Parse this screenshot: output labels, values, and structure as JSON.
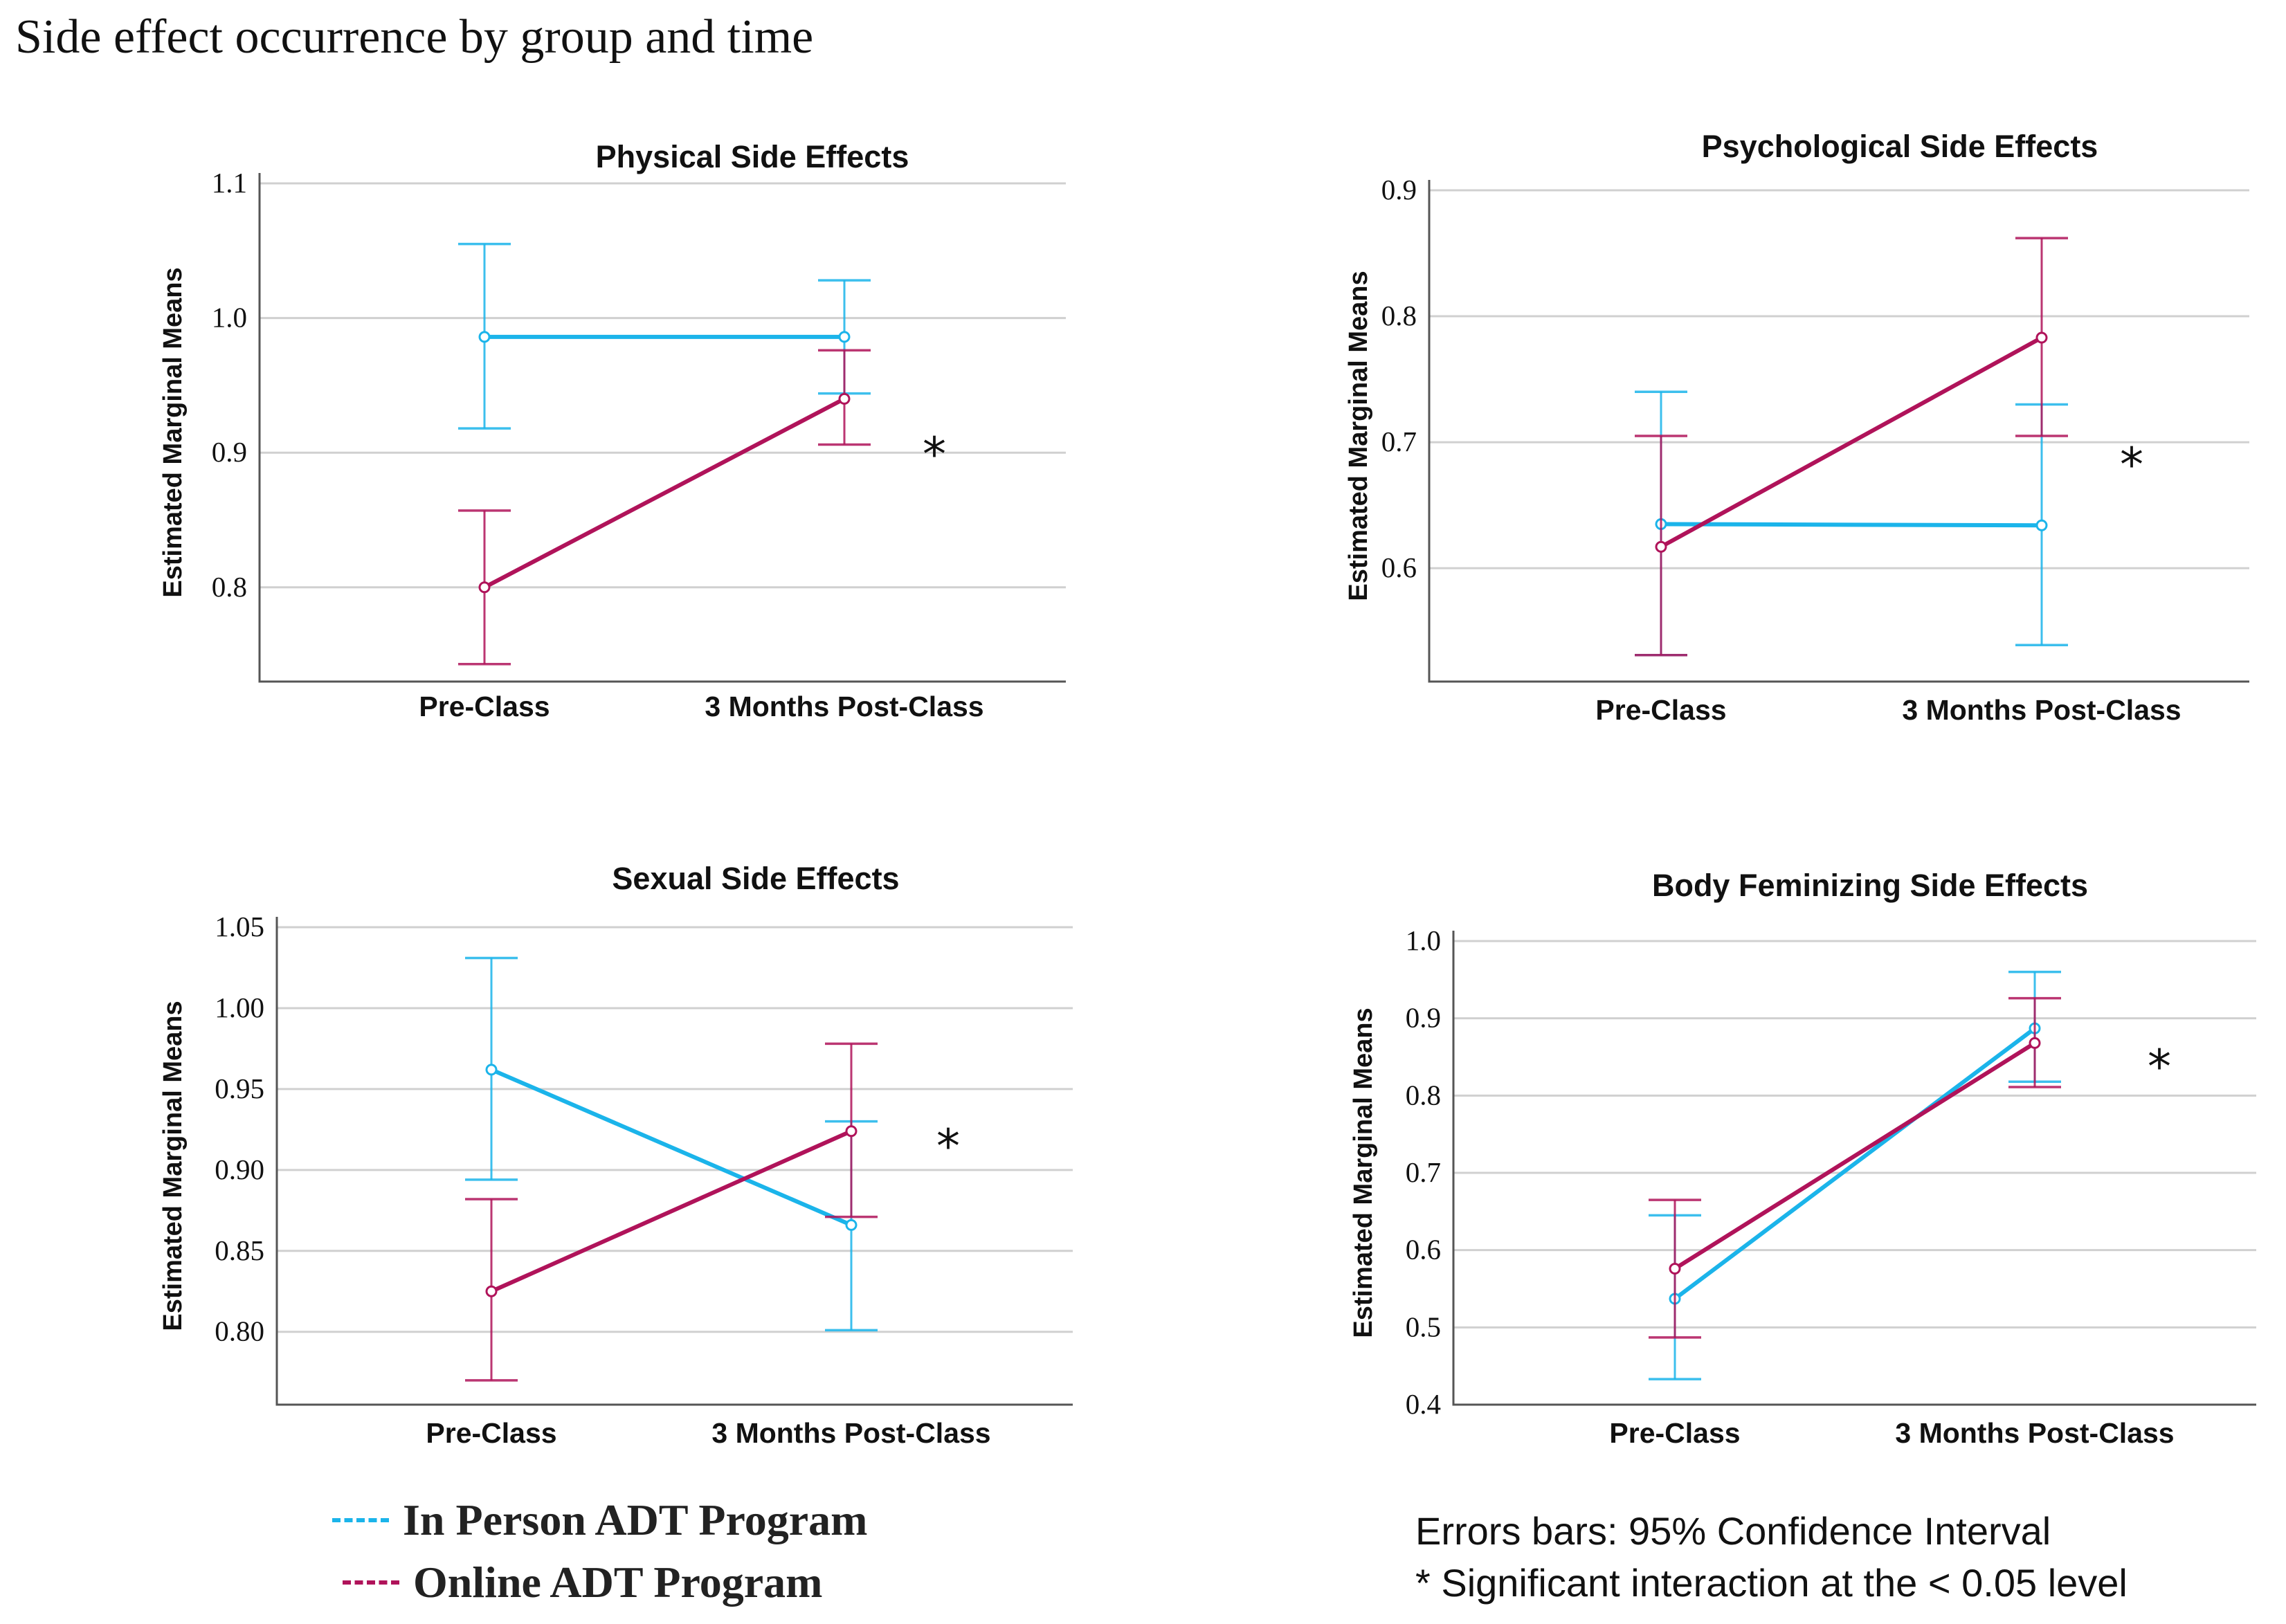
{
  "page_title": "Side effect occurrence by group and time",
  "colors": {
    "in_person": "#1BB4EA",
    "online": "#B0135A"
  },
  "legend": [
    {
      "key": "in_person",
      "label": "In Person ADT Program"
    },
    {
      "key": "online",
      "label": "Online ADT Program"
    }
  ],
  "notes": {
    "errors": "Errors bars: 95% Confidence Interval",
    "significance": "* Significant interaction at the < 0.05 level"
  },
  "chart_data": [
    {
      "id": "physical",
      "type": "line",
      "title": "Physical Side Effects",
      "ylabel": "Estimated Marginal Means",
      "xlabel": "",
      "categories": [
        "Pre-Class",
        "3 Months Post-Class"
      ],
      "ylim": [
        0.73,
        1.1
      ],
      "yticks": [
        0.8,
        0.9,
        1.0,
        1.1
      ],
      "ytick_labels": [
        "0.8",
        "0.9",
        "1.0",
        "1.1"
      ],
      "series": [
        {
          "name": "In Person ADT Program",
          "key": "in_person",
          "values": [
            0.986,
            0.986
          ],
          "ci_low": [
            0.918,
            0.944
          ],
          "ci_high": [
            1.055,
            1.028
          ]
        },
        {
          "name": "Online ADT Program",
          "key": "online",
          "values": [
            0.8,
            0.94
          ],
          "ci_low": [
            0.743,
            0.906
          ],
          "ci_high": [
            0.857,
            0.976
          ]
        }
      ],
      "significance_marker": "*"
    },
    {
      "id": "psychological",
      "type": "line",
      "title": "Psychological Side Effects",
      "ylabel": "Estimated Marginal Means",
      "xlabel": "",
      "categories": [
        "Pre-Class",
        "3 Months Post-Class"
      ],
      "ylim": [
        0.51,
        0.9
      ],
      "yticks": [
        0.6,
        0.7,
        0.8,
        0.9
      ],
      "ytick_labels": [
        "0.6",
        "0.7",
        "0.8",
        "0.9"
      ],
      "series": [
        {
          "name": "In Person ADT Program",
          "key": "in_person",
          "values": [
            0.635,
            0.634
          ],
          "ci_low": [
            0.531,
            0.539
          ],
          "ci_high": [
            0.74,
            0.73
          ]
        },
        {
          "name": "Online ADT Program",
          "key": "online",
          "values": [
            0.617,
            0.783
          ],
          "ci_low": [
            0.531,
            0.705
          ],
          "ci_high": [
            0.705,
            0.862
          ]
        }
      ],
      "significance_marker": "*"
    },
    {
      "id": "sexual",
      "type": "line",
      "title": "Sexual Side Effects",
      "ylabel": "Estimated Marginal Means",
      "xlabel": "",
      "categories": [
        "Pre-Class",
        "3 Months Post-Class"
      ],
      "ylim": [
        0.755,
        1.05
      ],
      "yticks": [
        0.8,
        0.85,
        0.9,
        0.95,
        1.0,
        1.05
      ],
      "ytick_labels": [
        "0.80",
        "0.85",
        "0.90",
        "0.95",
        "1.00",
        "1.05"
      ],
      "series": [
        {
          "name": "In Person ADT Program",
          "key": "in_person",
          "values": [
            0.962,
            0.866
          ],
          "ci_low": [
            0.894,
            0.801
          ],
          "ci_high": [
            1.031,
            0.93
          ]
        },
        {
          "name": "Online ADT Program",
          "key": "online",
          "values": [
            0.825,
            0.924
          ],
          "ci_low": [
            0.77,
            0.871
          ],
          "ci_high": [
            0.882,
            0.978
          ]
        }
      ],
      "significance_marker": "*"
    },
    {
      "id": "body_feminizing",
      "type": "line",
      "title": "Body Feminizing Side Effects",
      "ylabel": "Estimated Marginal Means",
      "xlabel": "",
      "categories": [
        "Pre-Class",
        "3 Months Post-Class"
      ],
      "ylim": [
        0.4,
        1.0
      ],
      "yticks": [
        0.4,
        0.5,
        0.6,
        0.7,
        0.8,
        0.9,
        1.0
      ],
      "ytick_labels": [
        "0.4",
        "0.5",
        "0.6",
        "0.7",
        "0.8",
        "0.9",
        "1.0"
      ],
      "series": [
        {
          "name": "In Person ADT Program",
          "key": "in_person",
          "values": [
            0.537,
            0.887
          ],
          "ci_low": [
            0.433,
            0.818
          ],
          "ci_high": [
            0.645,
            0.96
          ]
        },
        {
          "name": "Online ADT Program",
          "key": "online",
          "values": [
            0.576,
            0.868
          ],
          "ci_low": [
            0.487,
            0.811
          ],
          "ci_high": [
            0.665,
            0.926
          ]
        }
      ],
      "significance_marker": "*"
    }
  ]
}
